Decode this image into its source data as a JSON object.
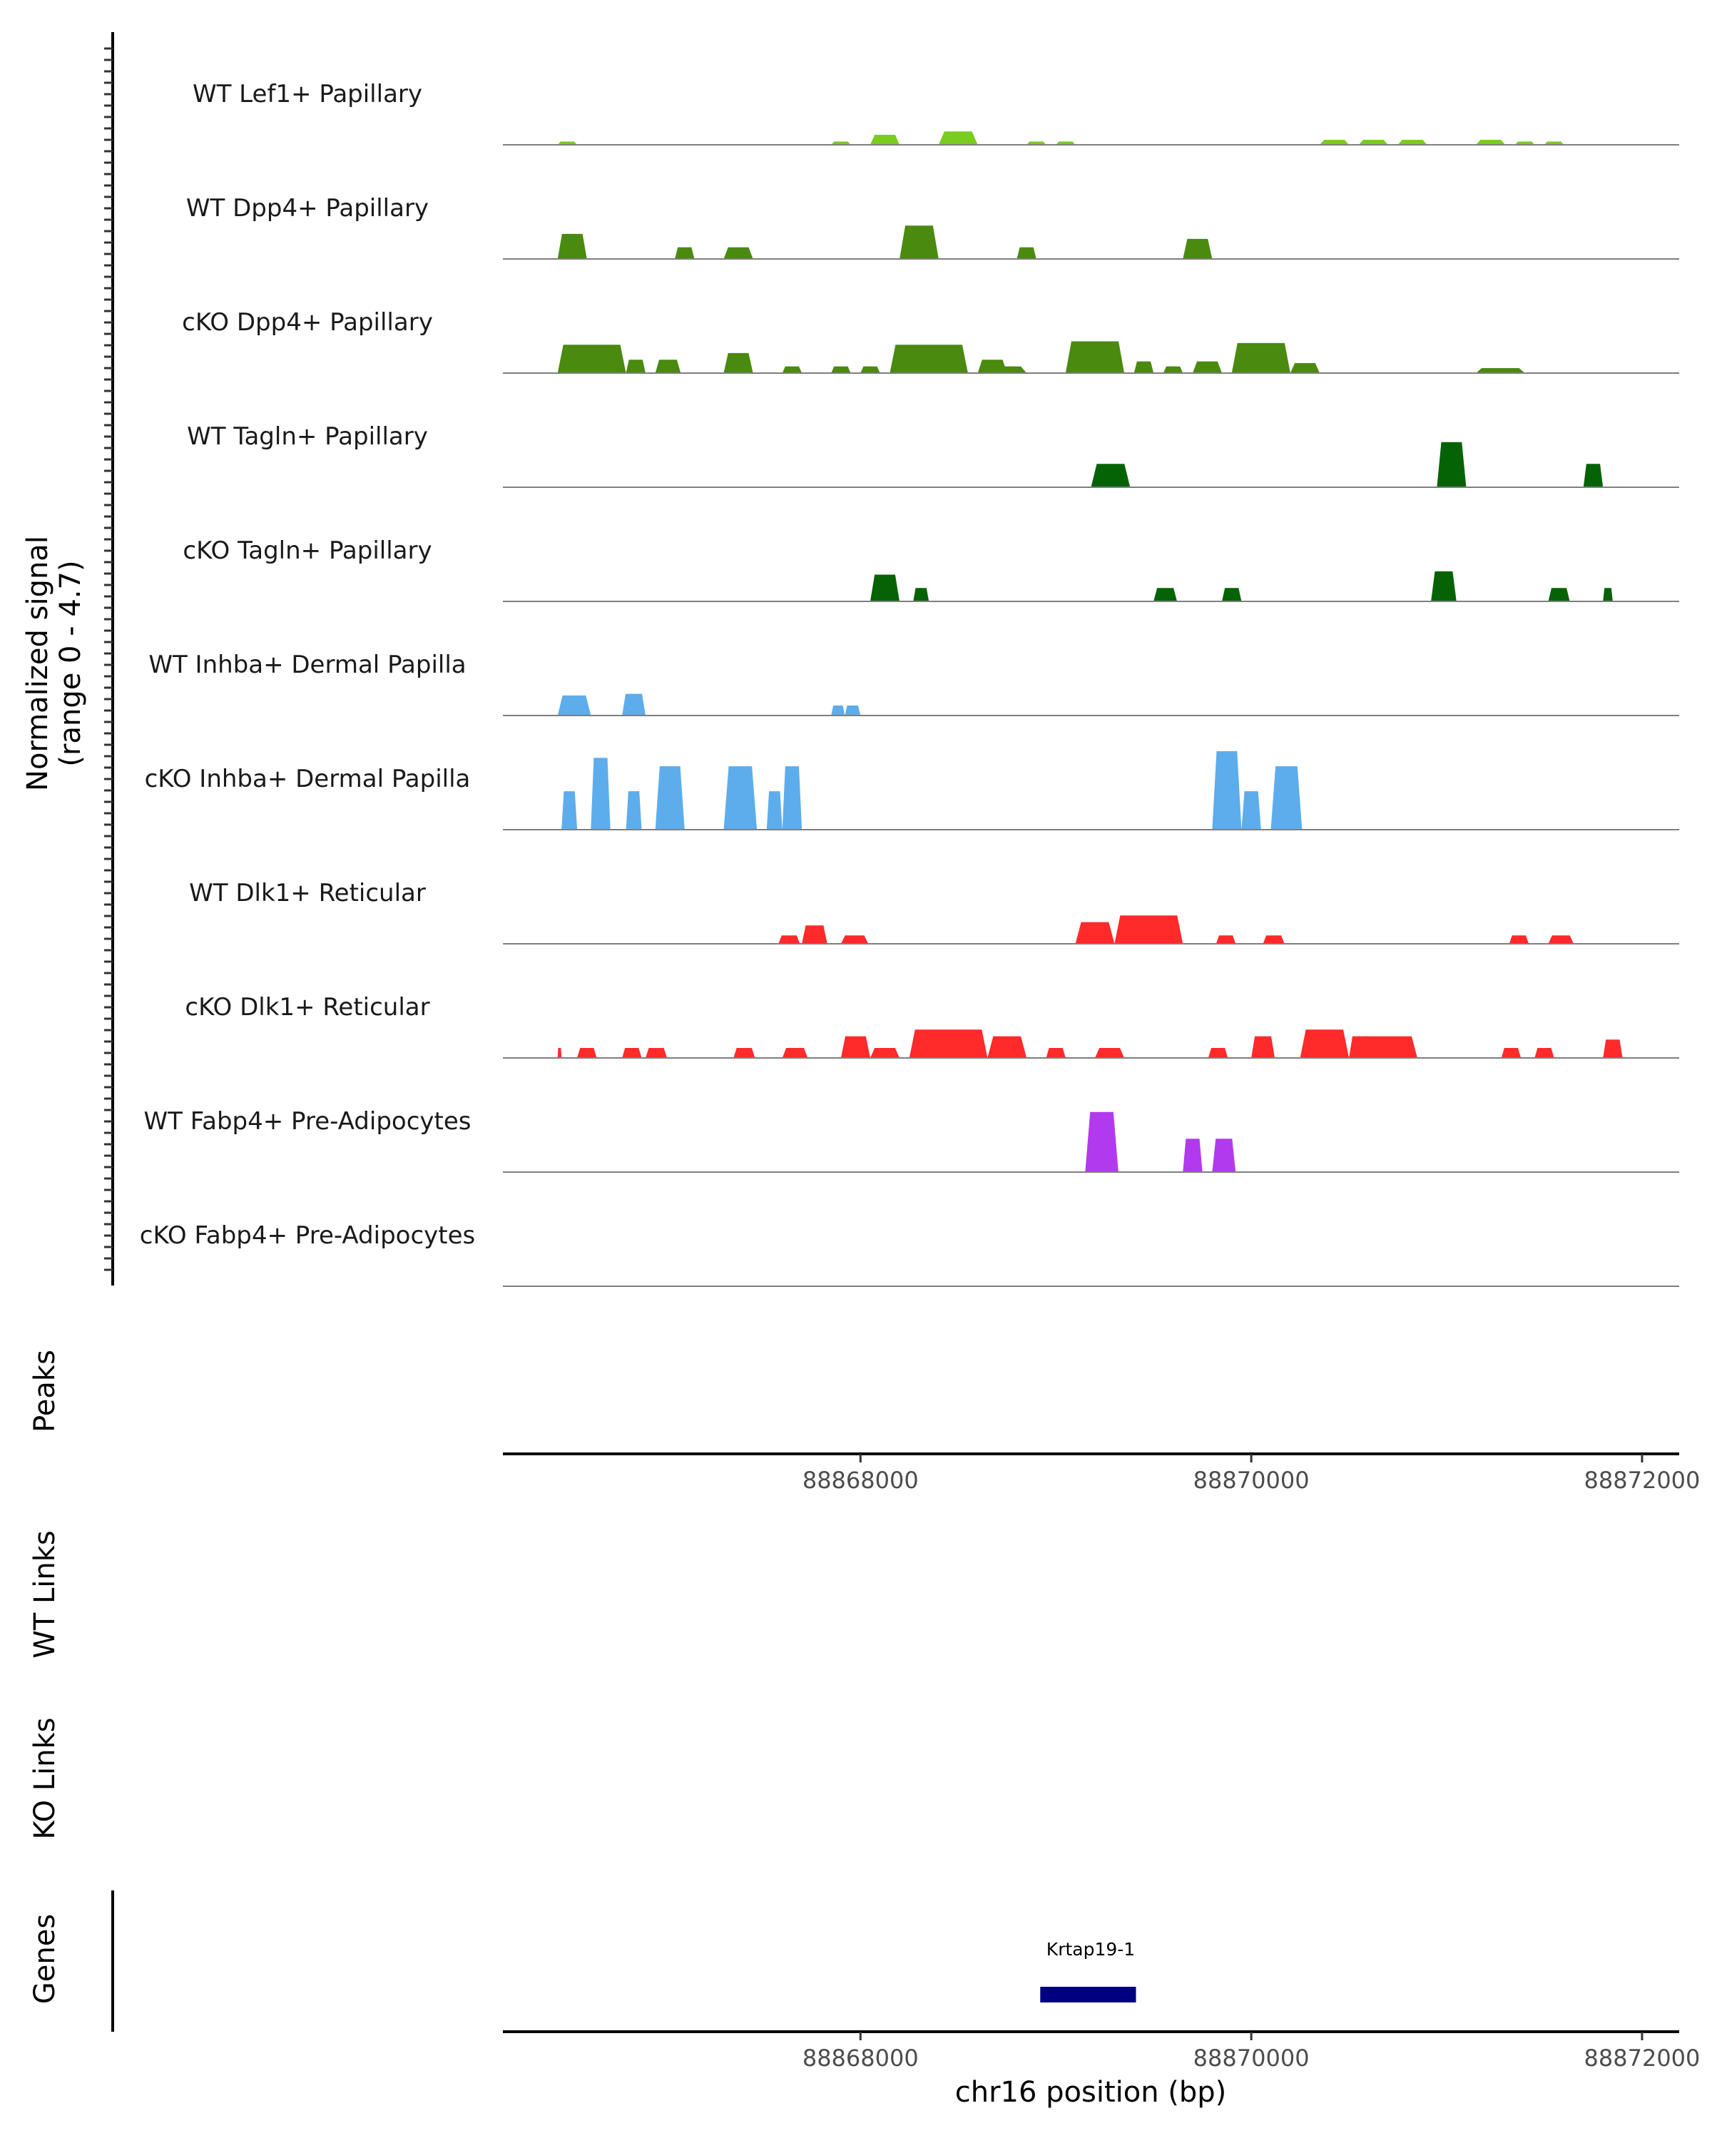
{
  "chart_data": {
    "type": "area",
    "title": "",
    "ylabel_line1": "Normalized signal",
    "ylabel_line2": "(range 0 - 4.7)",
    "ylim": [
      0,
      4.7
    ],
    "xlabel": "chr16 position (bp)",
    "xlim": [
      88866170,
      88872190
    ],
    "x_ticks": [
      88868000,
      88870000,
      88872000
    ],
    "x_tick_labels": [
      "88868000",
      "88870000",
      "88872000"
    ],
    "tracks": [
      {
        "name": "WT Lef1+ Papillary",
        "color": "#7ACC1F",
        "peaks": [
          [
            88866450,
            88866550,
            0.2
          ],
          [
            88867850,
            88867950,
            0.2
          ],
          [
            88868050,
            88868200,
            0.6
          ],
          [
            88868400,
            88868600,
            0.8
          ],
          [
            88868850,
            88868950,
            0.2
          ],
          [
            88869000,
            88869100,
            0.2
          ],
          [
            88870350,
            88870500,
            0.3
          ],
          [
            88870550,
            88870700,
            0.3
          ],
          [
            88870750,
            88870900,
            0.3
          ],
          [
            88871150,
            88871300,
            0.3
          ],
          [
            88871350,
            88871450,
            0.2
          ],
          [
            88871500,
            88871600,
            0.2
          ]
        ]
      },
      {
        "name": "WT Dpp4+ Papillary",
        "color": "#4A8A0F",
        "peaks": [
          [
            88866450,
            88866600,
            1.5
          ],
          [
            88867050,
            88867150,
            0.7
          ],
          [
            88867300,
            88867450,
            0.7
          ],
          [
            88868200,
            88868400,
            2.0
          ],
          [
            88868800,
            88868900,
            0.7
          ],
          [
            88869650,
            88869800,
            1.2
          ]
        ]
      },
      {
        "name": "cKO Dpp4+ Papillary",
        "color": "#4A8A0F",
        "peaks": [
          [
            88866450,
            88866800,
            1.7
          ],
          [
            88866800,
            88866900,
            0.8
          ],
          [
            88866950,
            88867080,
            0.8
          ],
          [
            88867300,
            88867450,
            1.2
          ],
          [
            88867600,
            88867700,
            0.4
          ],
          [
            88867850,
            88867950,
            0.4
          ],
          [
            88868000,
            88868100,
            0.4
          ],
          [
            88868150,
            88868550,
            1.7
          ],
          [
            88868600,
            88868750,
            0.8
          ],
          [
            88868650,
            88868850,
            0.4
          ],
          [
            88869050,
            88869350,
            1.9
          ],
          [
            88869400,
            88869500,
            0.7
          ],
          [
            88869550,
            88869650,
            0.4
          ],
          [
            88869700,
            88869850,
            0.7
          ],
          [
            88869900,
            88870200,
            1.8
          ],
          [
            88870200,
            88870350,
            0.6
          ],
          [
            88871150,
            88871400,
            0.3
          ]
        ]
      },
      {
        "name": "WT Tagln+ Papillary",
        "color": "#056305",
        "peaks": [
          [
            88869180,
            88869380,
            1.4
          ],
          [
            88870950,
            88871100,
            2.7
          ],
          [
            88871700,
            88871800,
            1.4
          ]
        ]
      },
      {
        "name": "cKO Tagln+ Papillary",
        "color": "#056305",
        "peaks": [
          [
            88868050,
            88868200,
            1.6
          ],
          [
            88868270,
            88868350,
            0.8
          ],
          [
            88869500,
            88869620,
            0.8
          ],
          [
            88869850,
            88869950,
            0.8
          ],
          [
            88870920,
            88871050,
            1.8
          ],
          [
            88871520,
            88871630,
            0.8
          ],
          [
            88871800,
            88871850,
            0.8
          ]
        ]
      },
      {
        "name": "WT Inhba+ Dermal Papilla",
        "color": "#5DADEC",
        "peaks": [
          [
            88866450,
            88866620,
            1.2
          ],
          [
            88866780,
            88866900,
            1.3
          ],
          [
            88867850,
            88867920,
            0.6
          ],
          [
            88867920,
            88868000,
            0.6
          ]
        ]
      },
      {
        "name": "cKO Inhba+ Dermal Papilla",
        "color": "#5DADEC",
        "peaks": [
          [
            88866470,
            88866550,
            2.3
          ],
          [
            88866620,
            88866720,
            4.3
          ],
          [
            88866800,
            88866880,
            2.3
          ],
          [
            88866950,
            88867100,
            3.8
          ],
          [
            88867300,
            88867470,
            3.8
          ],
          [
            88867520,
            88867600,
            2.3
          ],
          [
            88867600,
            88867700,
            3.8
          ],
          [
            88869800,
            88869950,
            4.7
          ],
          [
            88869950,
            88870050,
            2.3
          ],
          [
            88870100,
            88870260,
            3.8
          ]
        ]
      },
      {
        "name": "WT Dlk1+ Reticular",
        "color": "#FF2A2A",
        "peaks": [
          [
            88867580,
            88867690,
            0.5
          ],
          [
            88867700,
            88867830,
            1.1
          ],
          [
            88867900,
            88868040,
            0.5
          ],
          [
            88869100,
            88869300,
            1.3
          ],
          [
            88869300,
            88869650,
            1.7
          ],
          [
            88869820,
            88869920,
            0.5
          ],
          [
            88870060,
            88870170,
            0.5
          ],
          [
            88871320,
            88871420,
            0.5
          ],
          [
            88871520,
            88871650,
            0.5
          ]
        ]
      },
      {
        "name": "cKO Dlk1+ Reticular",
        "color": "#FF2A2A",
        "peaks": [
          [
            88866450,
            88866470,
            0.6
          ],
          [
            88866550,
            88866650,
            0.6
          ],
          [
            88866780,
            88866880,
            0.6
          ],
          [
            88866900,
            88867010,
            0.6
          ],
          [
            88867350,
            88867460,
            0.6
          ],
          [
            88867600,
            88867730,
            0.6
          ],
          [
            88867900,
            88868050,
            1.3
          ],
          [
            88868050,
            88868200,
            0.6
          ],
          [
            88868250,
            88868650,
            1.7
          ],
          [
            88868650,
            88868850,
            1.3
          ],
          [
            88868950,
            88869050,
            0.6
          ],
          [
            88869200,
            88869350,
            0.6
          ],
          [
            88869780,
            88869880,
            0.6
          ],
          [
            88870000,
            88870120,
            1.3
          ],
          [
            88870250,
            88870500,
            1.7
          ],
          [
            88870500,
            88870620,
            1.3
          ],
          [
            88870550,
            88870850,
            1.3
          ],
          [
            88871280,
            88871380,
            0.6
          ],
          [
            88871450,
            88871550,
            0.6
          ],
          [
            88871800,
            88871900,
            1.1
          ]
        ]
      },
      {
        "name": "WT Fabp4+ Pre-Adipocytes",
        "color": "#B23AEE",
        "peaks": [
          [
            88869150,
            88869320,
            3.6
          ],
          [
            88869650,
            88869750,
            2.0
          ],
          [
            88869800,
            88869920,
            2.0
          ]
        ]
      },
      {
        "name": "cKO Fabp4+ Pre-Adipocytes",
        "color": "#B23AEE",
        "peaks": []
      }
    ],
    "panels": {
      "peaks": "Peaks",
      "wt_links": "WT Links",
      "ko_links": "KO Links",
      "genes": "Genes"
    },
    "gene": {
      "name": "Krtap19-1",
      "start": 88868920,
      "end": 88869410,
      "color": "#000080"
    }
  }
}
